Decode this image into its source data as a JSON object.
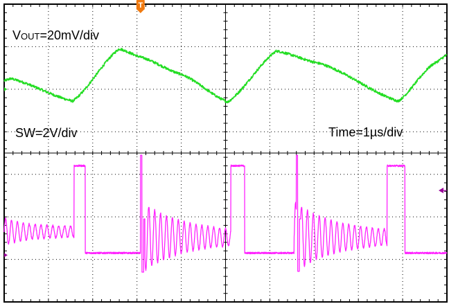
{
  "chart_data": {
    "type": "line",
    "annotations": {
      "vout_scale": "20mV/div",
      "sw_scale": "SW=2V/div",
      "time_scale": "Time=1µs/div"
    },
    "vout_label": {
      "prefix": "V",
      "sub": "OUT",
      "suffix": "=20mV/div"
    },
    "grid": true,
    "divisions": {
      "x": 10,
      "y": 7
    },
    "x_unit": "div (1µs/div)",
    "xlim": [
      0,
      10
    ],
    "ylim": [
      0,
      7
    ],
    "series": [
      {
        "color": "#22dd22",
        "x": [
          0,
          0.15,
          1.55,
          2.6,
          3.1,
          4.0,
          5.05,
          6.15,
          7.15,
          8.9,
          9.7,
          10.0
        ],
        "y": [
          5.2,
          5.25,
          4.72,
          5.95,
          5.75,
          5.35,
          4.7,
          5.9,
          5.6,
          4.72,
          5.6,
          5.8
        ]
      },
      {
        "color": "#ff22ff",
        "pulses": [
          {
            "rise": 1.58,
            "fall": 1.83,
            "high": 3.2
          },
          {
            "rise": 5.12,
            "fall": 5.43,
            "high": 3.2
          },
          {
            "rise": 8.65,
            "fall": 9.05,
            "high": 3.2
          }
        ],
        "ringing": [
          {
            "start": 0.0,
            "end": 1.58,
            "base": 1.65,
            "amp": 0.2,
            "decay": 0.5
          },
          {
            "start": 3.1,
            "end": 5.12,
            "base": 1.52,
            "amp": 0.72,
            "decay": 0.9
          },
          {
            "start": 6.55,
            "end": 8.65,
            "base": 1.52,
            "amp": 0.72,
            "decay": 0.9
          }
        ],
        "spikes": [
          {
            "x": 3.08,
            "top": 3.45,
            "bottom": 0.7
          },
          {
            "x": 6.6,
            "top": 3.45,
            "bottom": 0.72
          }
        ],
        "low_level": 1.15
      }
    ],
    "markers": {
      "trigger_marker": {
        "label": "T",
        "color": "#f07a10",
        "x": 3.08
      },
      "level_arrow": {
        "color": "#990099",
        "y": 2.62
      },
      "ch1_offset_marker": {
        "color": "#22dd22",
        "y": 5.0
      },
      "ch2_offset_marker": {
        "color": "#990099",
        "y": 1.1
      }
    }
  }
}
